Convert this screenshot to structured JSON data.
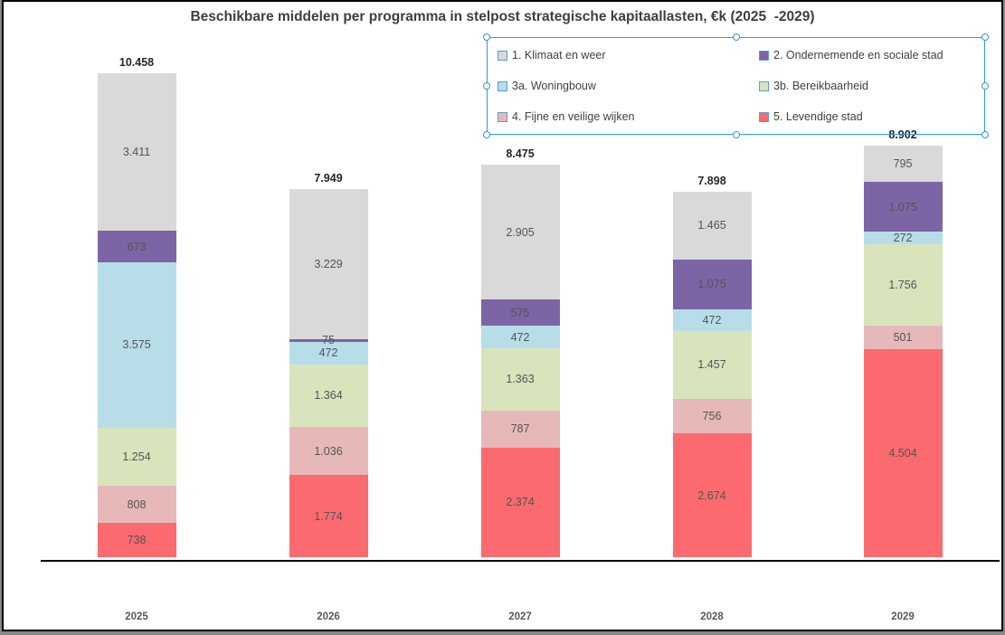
{
  "chart": {
    "title": "Beschikbare middelen per programma in stelpost strategische kapitaallasten, €k (2025  -2029)"
  },
  "chart_data": {
    "type": "bar",
    "stacked": true,
    "title": "Beschikbare middelen per programma in stelpost strategische kapitaallasten, €k (2025  -2029)",
    "xlabel": "",
    "ylabel": "",
    "grid": false,
    "y_axis_visible": false,
    "legend_position": "top-right",
    "number_format": "thousands-dot",
    "categories": [
      "2025",
      "2026",
      "2027",
      "2028",
      "2029"
    ],
    "series": [
      {
        "name": "5. Levendige stad",
        "color": "#FA6A6F",
        "values": [
          738,
          1774,
          2374,
          2674,
          4504
        ]
      },
      {
        "name": "4. Fijne en veilige wijken",
        "color": "#E6B9B8",
        "values": [
          808,
          1036,
          787,
          756,
          501
        ]
      },
      {
        "name": "3b. Bereikbaarheid",
        "color": "#D7E4BC",
        "values": [
          1254,
          1364,
          1363,
          1457,
          1756
        ]
      },
      {
        "name": "3a. Woningbouw",
        "color": "#B7DEE8",
        "values": [
          3575,
          472,
          472,
          472,
          272
        ]
      },
      {
        "name": "2. Ondernemende en sociale stad",
        "color": "#7C64A5",
        "values": [
          673,
          75,
          575,
          1075,
          1075
        ]
      },
      {
        "name": "1. Klimaat en weer",
        "color": "#D9D9D9",
        "values": [
          3411,
          3229,
          2905,
          1465,
          795
        ]
      }
    ],
    "totals": [
      10458,
      7949,
      8475,
      7898,
      8902
    ]
  },
  "legend": {
    "border_color": "#2F9BD8",
    "swatch_border_color": "#5B9BD5",
    "items": [
      {
        "label": "1. Klimaat en weer",
        "color": "#D9D9D9"
      },
      {
        "label": "2. Ondernemende en sociale stad",
        "color": "#7C64A5"
      },
      {
        "label": "3a. Woningbouw",
        "color": "#B7DEE8"
      },
      {
        "label": "3b. Bereikbaarheid",
        "color": "#D7E4BC"
      },
      {
        "label": "4. Fijne en veilige wijken",
        "color": "#E6B9B8"
      },
      {
        "label": "5. Levendige stad",
        "color": "#FA6A6F"
      }
    ]
  },
  "colors": {
    "background": "#FFFFFF",
    "frame_border": "#000000",
    "axis_line": "#000000",
    "title_text": "#3F3F3F",
    "segment_label_text": "#545454",
    "total_label_text": "#262626",
    "category_label_text": "#595959"
  }
}
